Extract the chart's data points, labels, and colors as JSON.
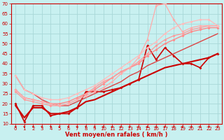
{
  "xlabel": "Vent moyen/en rafales ( km/h )",
  "bg_color": "#c8f0f0",
  "grid_color": "#a8d8d8",
  "xlim": [
    -0.5,
    23.5
  ],
  "ylim": [
    10,
    70
  ],
  "yticks": [
    10,
    15,
    20,
    25,
    30,
    35,
    40,
    45,
    50,
    55,
    60,
    65,
    70
  ],
  "xticks": [
    0,
    1,
    2,
    3,
    4,
    5,
    6,
    7,
    8,
    9,
    10,
    11,
    12,
    13,
    14,
    15,
    16,
    17,
    18,
    19,
    20,
    21,
    22,
    23
  ],
  "lines": [
    {
      "x": [
        0,
        1,
        2,
        3,
        4,
        5,
        6,
        7,
        8,
        9,
        10,
        11,
        12,
        13,
        14,
        15,
        16,
        17,
        18,
        19,
        20,
        21,
        22,
        23
      ],
      "y": [
        20,
        11,
        19,
        19,
        14,
        15,
        15,
        18,
        26,
        26,
        26,
        27,
        28,
        30,
        32,
        49,
        42,
        48,
        44,
        40,
        40,
        38,
        43,
        45
      ],
      "color": "#cc0000",
      "lw": 1.2,
      "ms": 2.0
    },
    {
      "x": [
        0,
        1,
        2,
        3,
        4,
        5,
        6,
        7,
        8,
        9,
        10,
        11,
        12,
        13,
        14,
        15,
        16,
        17,
        18,
        19,
        20,
        21,
        22,
        23
      ],
      "y": [
        19,
        13,
        18,
        18,
        15,
        15,
        16,
        18,
        21,
        22,
        24,
        26,
        28,
        30,
        32,
        34,
        36,
        38,
        39,
        40,
        41,
        42,
        43,
        45
      ],
      "color": "#cc0000",
      "lw": 1.5,
      "ms": 0
    },
    {
      "x": [
        0,
        1,
        2,
        3,
        4,
        5,
        6,
        7,
        8,
        9,
        10,
        11,
        12,
        13,
        14,
        15,
        16,
        17,
        18,
        19,
        20,
        21,
        22,
        23
      ],
      "y": [
        34,
        27,
        25,
        22,
        20,
        19,
        19,
        21,
        23,
        25,
        27,
        29,
        31,
        34,
        36,
        39,
        41,
        43,
        45,
        47,
        49,
        51,
        53,
        55
      ],
      "color": "#dd4444",
      "lw": 1.0,
      "ms": 0
    },
    {
      "x": [
        0,
        1,
        2,
        3,
        4,
        5,
        6,
        7,
        8,
        9,
        10,
        11,
        12,
        13,
        14,
        15,
        16,
        17,
        18,
        19,
        20,
        21,
        22,
        23
      ],
      "y": [
        27,
        23,
        22,
        21,
        20,
        20,
        21,
        23,
        25,
        27,
        30,
        33,
        36,
        38,
        40,
        44,
        47,
        50,
        52,
        54,
        56,
        57,
        58,
        58
      ],
      "color": "#ff8888",
      "lw": 1.0,
      "ms": 2.0
    },
    {
      "x": [
        0,
        1,
        2,
        3,
        4,
        5,
        6,
        7,
        8,
        9,
        10,
        11,
        12,
        13,
        14,
        15,
        16,
        17,
        18,
        19,
        20,
        21,
        22,
        23
      ],
      "y": [
        26,
        22,
        21,
        20,
        19,
        19,
        20,
        22,
        25,
        28,
        31,
        33,
        36,
        38,
        41,
        45,
        49,
        52,
        54,
        55,
        57,
        58,
        59,
        59
      ],
      "color": "#ff9999",
      "lw": 0.9,
      "ms": 2.0
    },
    {
      "x": [
        0,
        1,
        2,
        3,
        4,
        5,
        6,
        7,
        8,
        9,
        10,
        11,
        12,
        13,
        14,
        15,
        16,
        17,
        18,
        19,
        20,
        21,
        22,
        23
      ],
      "y": [
        27,
        23,
        22,
        21,
        20,
        19,
        20,
        22,
        24,
        26,
        28,
        31,
        35,
        38,
        43,
        52,
        69,
        70,
        62,
        56,
        58,
        59,
        59,
        59
      ],
      "color": "#ffaaaa",
      "lw": 0.9,
      "ms": 2.0
    },
    {
      "x": [
        0,
        1,
        2,
        3,
        4,
        5,
        6,
        7,
        8,
        9,
        10,
        11,
        12,
        13,
        14,
        15,
        16,
        17,
        18,
        19,
        20,
        21,
        22,
        23
      ],
      "y": [
        34,
        27,
        25,
        23,
        22,
        22,
        23,
        25,
        27,
        29,
        32,
        35,
        38,
        41,
        44,
        48,
        51,
        55,
        58,
        60,
        61,
        62,
        62,
        59
      ],
      "color": "#ffbbbb",
      "lw": 0.9,
      "ms": 2.0
    }
  ],
  "tick_color": "#cc0000",
  "tick_labelsize": 5,
  "xlabel_fontsize": 6,
  "xlabel_color": "#cc0000",
  "spine_color": "#cc0000"
}
